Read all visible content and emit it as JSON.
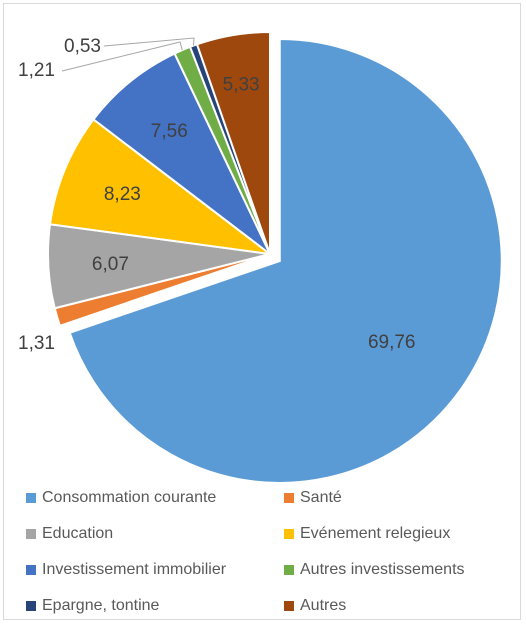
{
  "chart_data": {
    "type": "pie",
    "title": "",
    "slices": [
      {
        "label": "Consommation courante",
        "value": 69.76,
        "value_text": "69,76",
        "color": "#5b9bd5",
        "exploded": true
      },
      {
        "label": "Santé",
        "value": 1.31,
        "value_text": "1,31",
        "color": "#ed7d31"
      },
      {
        "label": "Education",
        "value": 6.07,
        "value_text": "6,07",
        "color": "#a5a5a5"
      },
      {
        "label": "Evénement relegieux",
        "value": 8.23,
        "value_text": "8,23",
        "color": "#ffc000"
      },
      {
        "label": "Investissement immobilier",
        "value": 7.56,
        "value_text": "7,56",
        "color": "#4472c4"
      },
      {
        "label": "Autres investissements",
        "value": 1.21,
        "value_text": "1,21",
        "color": "#70ad47"
      },
      {
        "label": "Epargne, tontine",
        "value": 0.53,
        "value_text": "0,53",
        "color": "#264478"
      },
      {
        "label": "Autres",
        "value": 5.33,
        "value_text": "5,33",
        "color": "#9e480e"
      }
    ],
    "legend_position": "bottom",
    "legend_columns": 2
  }
}
